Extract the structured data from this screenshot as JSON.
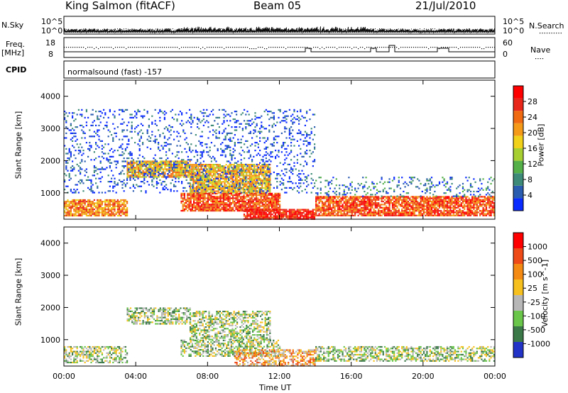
{
  "header": {
    "station": "King Salmon (fitACF)",
    "beam": "Beam 05",
    "date": "21/Jul/2010"
  },
  "strip_labels": {
    "nsky": "N.Sky",
    "nsky_ticks": [
      "10^5",
      "10^0"
    ],
    "nsearch": "N.Search",
    "nsearch_ticks": [
      "10^5",
      "10^0"
    ],
    "freq": "Freq.",
    "freq_unit": "[MHz]",
    "freq_ticks": [
      "18",
      "8"
    ],
    "nave": "Nave",
    "nave_ticks": [
      "60",
      "0"
    ],
    "cpid": "CPID",
    "cpid_value": "normalsound (fast) -157"
  },
  "chart_data": [
    {
      "type": "heatmap",
      "panel": "power",
      "ylabel": "Slant Range [km]",
      "yticks": [
        "4000",
        "3000",
        "2000",
        "1000"
      ],
      "ylim": [
        180,
        4500
      ],
      "x_range_hours": [
        0,
        24
      ],
      "colorbar_label": "Power [dB]",
      "colorbar_ticks": [
        "28",
        "24",
        "20",
        "16",
        "12",
        "8",
        "4"
      ],
      "colors": [
        "#0a2bff",
        "#2a5db0",
        "#3d8a78",
        "#55b04a",
        "#a8cf32",
        "#f1d11a",
        "#f49a18",
        "#f06a12",
        "#e8261a",
        "#ff0000"
      ],
      "scatter_regions": [
        {
          "hours": [
            0.0,
            3.5
          ],
          "range_km": [
            300,
            800
          ],
          "level": 7
        },
        {
          "hours": [
            3.5,
            7.0
          ],
          "range_km": [
            1500,
            2000
          ],
          "level": 6
        },
        {
          "hours": [
            7.0,
            11.5
          ],
          "range_km": [
            1000,
            1900
          ],
          "level": 6
        },
        {
          "hours": [
            6.5,
            12.0
          ],
          "range_km": [
            450,
            1000
          ],
          "level": 8
        },
        {
          "hours": [
            10.0,
            14.0
          ],
          "range_km": [
            200,
            500
          ],
          "level": 9
        },
        {
          "hours": [
            14.0,
            24.0
          ],
          "range_km": [
            300,
            900
          ],
          "level": 8
        },
        {
          "hours": [
            14.0,
            24.0
          ],
          "range_km": [
            900,
            1500
          ],
          "level": 2
        },
        {
          "hours": [
            0.0,
            14.0
          ],
          "range_km": [
            1000,
            3600
          ],
          "level": 1
        }
      ]
    },
    {
      "type": "heatmap",
      "panel": "velocity",
      "ylabel": "Slant Range [km]",
      "yticks": [
        "4000",
        "3000",
        "2000",
        "1000"
      ],
      "ylim": [
        180,
        4500
      ],
      "x_range_hours": [
        0,
        24
      ],
      "xlabel": "Time UT",
      "xticks": [
        "00:00",
        "04:00",
        "08:00",
        "12:00",
        "16:00",
        "20:00",
        "00:00"
      ],
      "colorbar_label": "Velocity [m s^-1]",
      "colorbar_ticks": [
        "1000",
        "500",
        "100",
        "25",
        "-25",
        "-100",
        "-500",
        "-1000"
      ],
      "colors": [
        "#2233c8",
        "#3b7a48",
        "#69c64a",
        "#b7b7b7",
        "#f6c01e",
        "#f58a12",
        "#ee4a18",
        "#ff0000"
      ],
      "scatter_regions": [
        {
          "hours": [
            3.5,
            7.0
          ],
          "range_km": [
            1500,
            2000
          ],
          "level": 3
        },
        {
          "hours": [
            7.0,
            11.5
          ],
          "range_km": [
            1000,
            1900
          ],
          "level": 3
        },
        {
          "hours": [
            6.5,
            12.0
          ],
          "range_km": [
            500,
            1000
          ],
          "level": 3
        },
        {
          "hours": [
            9.5,
            14.0
          ],
          "range_km": [
            200,
            700
          ],
          "level": 5
        },
        {
          "hours": [
            14.0,
            24.0
          ],
          "range_km": [
            350,
            800
          ],
          "level": 3
        },
        {
          "hours": [
            0.0,
            3.5
          ],
          "range_km": [
            300,
            800
          ],
          "level": 3
        }
      ]
    }
  ]
}
